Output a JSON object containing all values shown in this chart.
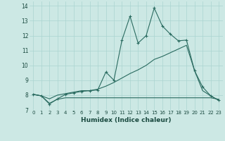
{
  "xlabel": "Humidex (Indice chaleur)",
  "bg_color": "#cce8e4",
  "grid_color": "#aad4d0",
  "line_color": "#2a6b60",
  "xlim": [
    -0.5,
    23.5
  ],
  "ylim": [
    7.0,
    14.3
  ],
  "xticks": [
    0,
    1,
    2,
    3,
    4,
    5,
    6,
    7,
    8,
    9,
    10,
    11,
    12,
    13,
    14,
    15,
    16,
    17,
    18,
    19,
    20,
    21,
    22,
    23
  ],
  "yticks": [
    7,
    8,
    9,
    10,
    11,
    12,
    13,
    14
  ],
  "line1_x": [
    0,
    1,
    2,
    3,
    4,
    5,
    6,
    7,
    8,
    9,
    10,
    11,
    12,
    13,
    14,
    15,
    16,
    17,
    18,
    19,
    20,
    21,
    22,
    23
  ],
  "line1_y": [
    8.05,
    7.95,
    7.4,
    7.75,
    8.05,
    8.15,
    8.25,
    8.3,
    8.35,
    9.55,
    9.0,
    11.7,
    13.3,
    11.5,
    12.0,
    13.85,
    12.65,
    12.1,
    11.65,
    11.7,
    9.65,
    8.55,
    7.95,
    7.65
  ],
  "line2_x": [
    0,
    1,
    2,
    3,
    4,
    5,
    6,
    7,
    8,
    9,
    10,
    11,
    12,
    13,
    14,
    15,
    16,
    17,
    18,
    19,
    20,
    21,
    22,
    23
  ],
  "line2_y": [
    8.05,
    7.95,
    7.75,
    8.0,
    8.1,
    8.2,
    8.3,
    8.3,
    8.4,
    8.6,
    8.85,
    9.15,
    9.45,
    9.7,
    10.0,
    10.4,
    10.6,
    10.85,
    11.1,
    11.35,
    9.65,
    8.3,
    7.95,
    7.65
  ],
  "line3_x": [
    0,
    1,
    2,
    3,
    4,
    5,
    6,
    7,
    8,
    9,
    10,
    11,
    12,
    13,
    14,
    15,
    16,
    17,
    18,
    19,
    20,
    21,
    22,
    23
  ],
  "line3_y": [
    8.05,
    7.95,
    7.45,
    7.72,
    7.82,
    7.82,
    7.82,
    7.82,
    7.82,
    7.82,
    7.82,
    7.82,
    7.82,
    7.82,
    7.82,
    7.82,
    7.82,
    7.82,
    7.82,
    7.82,
    7.82,
    7.82,
    7.82,
    7.72
  ]
}
